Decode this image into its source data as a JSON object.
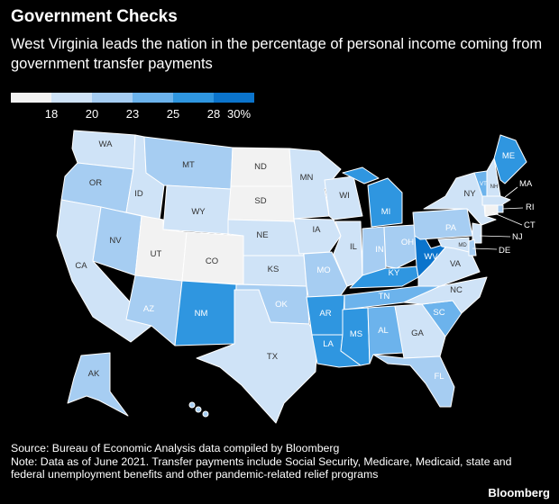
{
  "title": "Government Checks",
  "subtitle": "West Virginia leads the nation in the percentage of personal income coming from government transfer payments",
  "legend": {
    "colors": [
      "#f2f2f2",
      "#cfe3f7",
      "#a6cdf2",
      "#6cb3ec",
      "#2f96e0",
      "#0b74cc"
    ],
    "labels": [
      "18",
      "20",
      "23",
      "25",
      "28",
      "30%"
    ]
  },
  "states": [
    {
      "code": "WA"
    },
    {
      "code": "OR"
    },
    {
      "code": "CA"
    },
    {
      "code": "ID"
    },
    {
      "code": "NV"
    },
    {
      "code": "MT"
    },
    {
      "code": "WY"
    },
    {
      "code": "UT"
    },
    {
      "code": "CO"
    },
    {
      "code": "AZ"
    },
    {
      "code": "NM"
    },
    {
      "code": "ND"
    },
    {
      "code": "SD"
    },
    {
      "code": "NE"
    },
    {
      "code": "KS"
    },
    {
      "code": "OK"
    },
    {
      "code": "TX"
    },
    {
      "code": "MN"
    },
    {
      "code": "IA"
    },
    {
      "code": "MO"
    },
    {
      "code": "AR"
    },
    {
      "code": "LA"
    },
    {
      "code": "WI"
    },
    {
      "code": "IL"
    },
    {
      "code": "MI"
    },
    {
      "code": "IN"
    },
    {
      "code": "OH"
    },
    {
      "code": "KY"
    },
    {
      "code": "TN"
    },
    {
      "code": "MS"
    },
    {
      "code": "AL"
    },
    {
      "code": "GA"
    },
    {
      "code": "FL"
    },
    {
      "code": "SC"
    },
    {
      "code": "NC"
    },
    {
      "code": "VA"
    },
    {
      "code": "WV"
    },
    {
      "code": "PA"
    },
    {
      "code": "NY"
    },
    {
      "code": "VT"
    },
    {
      "code": "NH"
    },
    {
      "code": "ME"
    },
    {
      "code": "MA"
    },
    {
      "code": "RI"
    },
    {
      "code": "CT"
    },
    {
      "code": "NJ"
    },
    {
      "code": "DE"
    },
    {
      "code": "MD"
    },
    {
      "code": "AK"
    }
  ],
  "footer": {
    "source": "Source: Bureau of Economic Analysis data compiled by Bloomberg",
    "note": "Note: Data as of June 2021. Transfer payments include Social Security, Medicare, Medicaid, state and federal unemployment benefits and other pandemic-related relief programs"
  },
  "brand": "Bloomberg"
}
